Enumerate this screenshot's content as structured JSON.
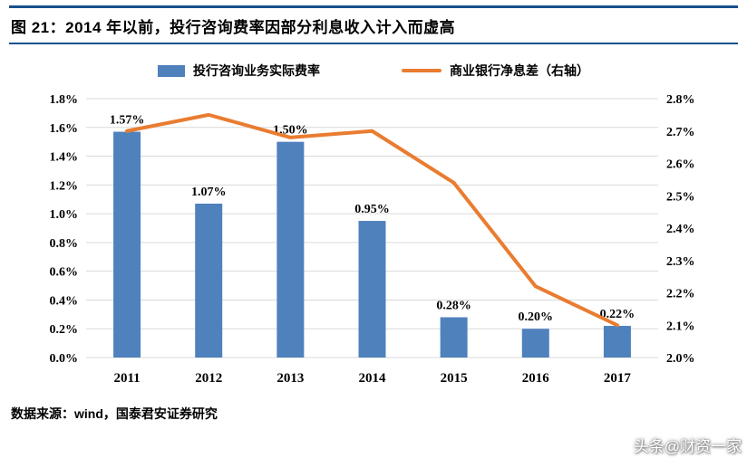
{
  "header": {
    "title": "图 21：2014 年以前，投行咨询费率因部分利息收入计入而虚高",
    "accent_color": "#17508D"
  },
  "legend": [
    {
      "label": "投行咨询业务实际费率",
      "type": "bar",
      "color": "#4F81BD"
    },
    {
      "label": "商业银行净息差（右轴）",
      "type": "line",
      "color": "#E97C30"
    }
  ],
  "footer": {
    "source": "数据来源：wind，国泰君安证券研究"
  },
  "watermark": "头条@财资一家",
  "chart_data": {
    "type": "bar+line",
    "title": "图 21：2014 年以前，投行咨询费率因部分利息收入计入而虚高",
    "categories": [
      "2011",
      "2012",
      "2013",
      "2014",
      "2015",
      "2016",
      "2017"
    ],
    "series": [
      {
        "name": "投行咨询业务实际费率",
        "type": "bar",
        "axis": "left",
        "color": "#4F81BD",
        "values": [
          1.57,
          1.07,
          1.5,
          0.95,
          0.28,
          0.2,
          0.22
        ],
        "labels": [
          "1.57%",
          "1.07%",
          "1.50%",
          "0.95%",
          "0.28%",
          "0.20%",
          "0.22%"
        ]
      },
      {
        "name": "商业银行净息差（右轴）",
        "type": "line",
        "axis": "right",
        "color": "#E97C30",
        "values": [
          2.7,
          2.75,
          2.68,
          2.7,
          2.54,
          2.22,
          2.1
        ]
      }
    ],
    "axes": {
      "left": {
        "min": 0.0,
        "max": 1.8,
        "step": 0.2,
        "ticks": [
          "1.8%",
          "1.6%",
          "1.4%",
          "1.2%",
          "1.0%",
          "0.8%",
          "0.6%",
          "0.4%",
          "0.2%",
          "0.0%"
        ]
      },
      "right": {
        "min": 2.0,
        "max": 2.8,
        "step": 0.1,
        "ticks": [
          "2.8%",
          "2.7%",
          "2.6%",
          "2.5%",
          "2.4%",
          "2.3%",
          "2.2%",
          "2.1%",
          "2.0%"
        ]
      }
    },
    "grid": true,
    "legend_position": "top",
    "gridline_color": "#D9D9D9"
  }
}
